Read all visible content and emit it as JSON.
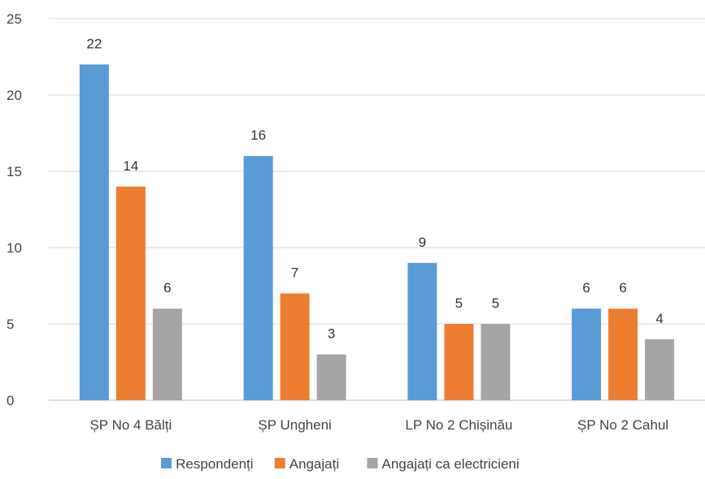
{
  "chart_data": {
    "type": "bar",
    "title": "",
    "xlabel": "",
    "ylabel": "",
    "categories": [
      "ȘP No 4 Bălți",
      "ȘP Ungheni",
      "LP No 2 Chișinău",
      "ȘP No 2 Cahul"
    ],
    "series": [
      {
        "name": "Respondenți",
        "values": [
          22,
          16,
          9,
          6
        ],
        "color": "#5B9BD5"
      },
      {
        "name": "Angajați",
        "values": [
          14,
          7,
          5,
          6
        ],
        "color": "#ED7D31"
      },
      {
        "name": "Angajați ca electricieni",
        "values": [
          6,
          3,
          5,
          4
        ],
        "color": "#A5A5A5"
      }
    ],
    "ylim": [
      0,
      25
    ],
    "yticks": [
      0,
      5,
      10,
      15,
      20,
      25
    ],
    "grid": true,
    "legend_position": "bottom",
    "data_labels": true
  }
}
